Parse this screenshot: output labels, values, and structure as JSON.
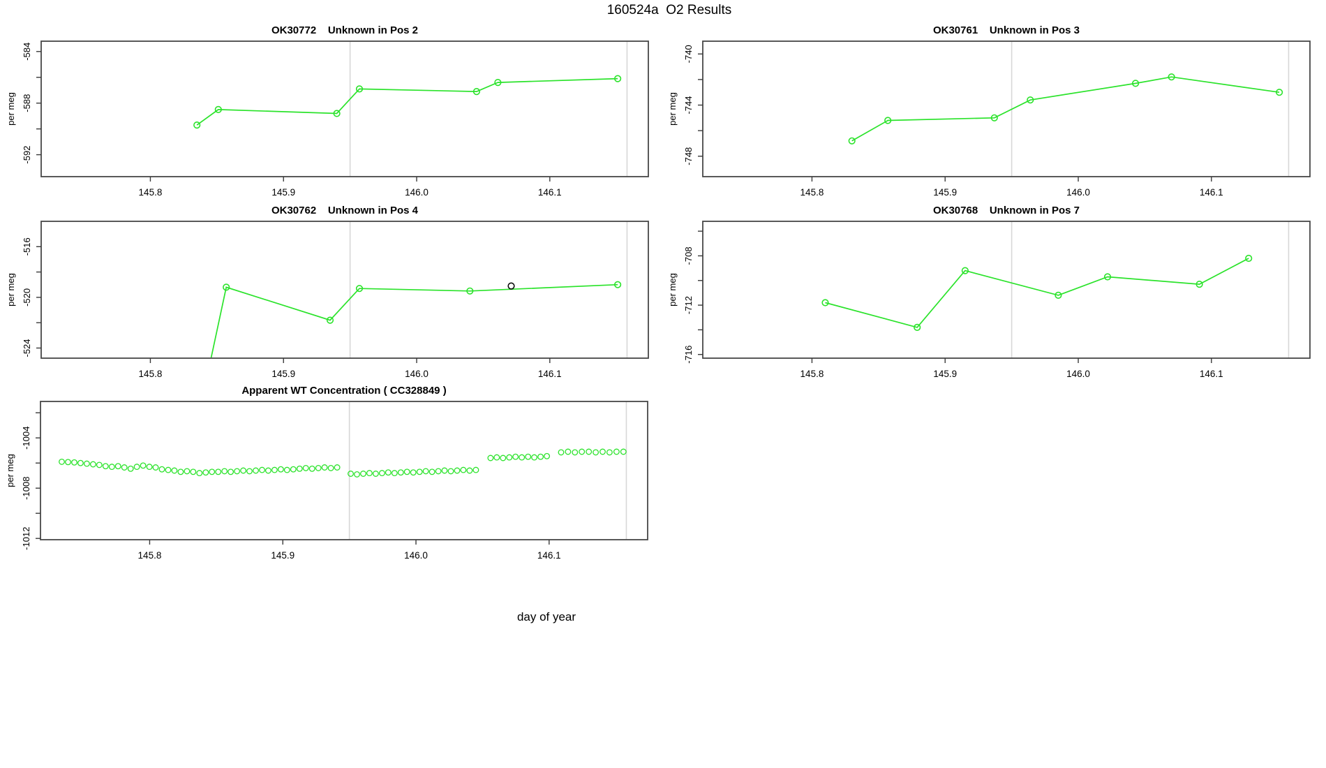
{
  "title": "160524a  O2 Results",
  "xlabel": "day of year",
  "colors": {
    "series_green": "#2be32b",
    "outlier_black": "#0b0b0b",
    "gridline": "#d7d7d7",
    "axis_frame": "#474747",
    "tick": "#3a3a3a",
    "text": "#000000",
    "background": "#ffffff"
  },
  "chart_data": {
    "type": "line",
    "x_axis": {
      "label": "day of year",
      "xlim": [
        145.718,
        146.174
      ],
      "ticks": [
        145.8,
        145.9,
        146.0,
        146.1
      ],
      "gridlines_x": [
        145.95,
        146.158
      ]
    },
    "panels": [
      {
        "title": "OK30772    Unknown in Pos 2",
        "ylabel": "per meg",
        "type": "line",
        "ylim": [
          -593.7,
          -583.2
        ],
        "yticks_labeled": [
          -584,
          -588,
          -592
        ],
        "yticks_minor": [
          -586,
          -590
        ],
        "x": [
          145.835,
          145.851,
          145.94,
          145.957,
          146.045,
          146.061,
          146.151
        ],
        "y": [
          -589.7,
          -588.5,
          -588.8,
          -586.9,
          -587.1,
          -586.4,
          -586.1
        ]
      },
      {
        "title": "OK30761    Unknown in Pos 3",
        "ylabel": "per meg",
        "type": "line",
        "ylim": [
          -749.6,
          -739.0
        ],
        "yticks_labeled": [
          -740,
          -744,
          -748
        ],
        "yticks_minor": [
          -742,
          -746
        ],
        "x": [
          145.83,
          145.857,
          145.937,
          145.964,
          146.043,
          146.07,
          146.151
        ],
        "y": [
          -746.8,
          -745.2,
          -745.0,
          -743.6,
          -742.3,
          -741.8,
          -743.0
        ]
      },
      {
        "title": "OK30762    Unknown in Pos 4",
        "ylabel": "per meg",
        "type": "line",
        "ylim": [
          -524.8,
          -514.0
        ],
        "yticks_labeled": [
          -516,
          -520,
          -524
        ],
        "yticks_minor": [
          -518,
          -522
        ],
        "x": [
          145.835,
          145.857,
          145.935,
          145.957,
          146.04,
          146.151
        ],
        "y": [
          -530.0,
          -519.2,
          -521.8,
          -519.3,
          -519.5,
          -519.0
        ],
        "first_point_off_scale": true,
        "outlier_point": {
          "x": 146.071,
          "y": -519.1,
          "color": "black"
        }
      },
      {
        "title": "OK30768    Unknown in Pos 7",
        "ylabel": "per meg",
        "type": "line",
        "ylim": [
          -716.3,
          -705.2
        ],
        "yticks_labeled": [
          -708,
          -712,
          -716
        ],
        "yticks_minor": [
          -706,
          -710,
          -714
        ],
        "x": [
          145.81,
          145.879,
          145.915,
          145.985,
          146.022,
          146.091,
          146.128
        ],
        "y": [
          -711.8,
          -713.8,
          -709.2,
          -711.2,
          -709.7,
          -710.3,
          -708.2
        ]
      },
      {
        "title": "Apparent WT Concentration ( CC328849 )",
        "ylabel": "per meg",
        "type": "scatter",
        "ylim": [
          -1012.1,
          -1001.1
        ],
        "yticks_labeled": [
          -1004,
          -1008,
          -1012
        ],
        "yticks_minor": [
          -1002,
          -1006,
          -1010
        ],
        "x": [
          145.734,
          145.7387,
          145.7434,
          145.7481,
          145.7528,
          145.7575,
          145.7622,
          145.7669,
          145.7716,
          145.7763,
          145.781,
          145.7857,
          145.7904,
          145.7951,
          145.7998,
          145.8045,
          145.8092,
          145.8139,
          145.8186,
          145.8233,
          145.828,
          145.8327,
          145.8374,
          145.8421,
          145.8468,
          145.8515,
          145.8562,
          145.8609,
          145.8656,
          145.8703,
          145.875,
          145.8797,
          145.8844,
          145.8891,
          145.8938,
          145.8985,
          145.9032,
          145.9079,
          145.9126,
          145.9173,
          145.922,
          145.9267,
          145.9314,
          145.9361,
          145.9408,
          145.951,
          145.9557,
          145.9604,
          145.9651,
          145.9698,
          145.9745,
          145.9792,
          145.9839,
          145.9886,
          145.9933,
          145.998,
          146.0027,
          146.0074,
          146.0121,
          146.0168,
          146.0215,
          146.0262,
          146.0309,
          146.0356,
          146.0403,
          146.045,
          146.056,
          146.0607,
          146.0654,
          146.0701,
          146.0748,
          146.0795,
          146.0842,
          146.0889,
          146.0936,
          146.0983,
          146.109,
          146.1142,
          146.1194,
          146.1246,
          146.1298,
          146.135,
          146.1402,
          146.1454,
          146.1506,
          146.1558
        ],
        "y": [
          -1005.9,
          -1005.92,
          -1005.95,
          -1006.0,
          -1006.05,
          -1006.1,
          -1006.15,
          -1006.25,
          -1006.3,
          -1006.25,
          -1006.35,
          -1006.45,
          -1006.3,
          -1006.2,
          -1006.3,
          -1006.35,
          -1006.5,
          -1006.55,
          -1006.6,
          -1006.7,
          -1006.65,
          -1006.7,
          -1006.8,
          -1006.75,
          -1006.7,
          -1006.7,
          -1006.65,
          -1006.7,
          -1006.65,
          -1006.6,
          -1006.65,
          -1006.6,
          -1006.55,
          -1006.6,
          -1006.55,
          -1006.5,
          -1006.55,
          -1006.5,
          -1006.45,
          -1006.4,
          -1006.45,
          -1006.4,
          -1006.35,
          -1006.4,
          -1006.35,
          -1006.85,
          -1006.9,
          -1006.85,
          -1006.8,
          -1006.85,
          -1006.8,
          -1006.75,
          -1006.8,
          -1006.75,
          -1006.7,
          -1006.75,
          -1006.7,
          -1006.65,
          -1006.7,
          -1006.65,
          -1006.6,
          -1006.65,
          -1006.6,
          -1006.55,
          -1006.6,
          -1006.55,
          -1005.6,
          -1005.55,
          -1005.6,
          -1005.55,
          -1005.5,
          -1005.55,
          -1005.5,
          -1005.55,
          -1005.5,
          -1005.45,
          -1005.15,
          -1005.1,
          -1005.15,
          -1005.1,
          -1005.1,
          -1005.15,
          -1005.1,
          -1005.15,
          -1005.1,
          -1005.1
        ]
      }
    ]
  }
}
